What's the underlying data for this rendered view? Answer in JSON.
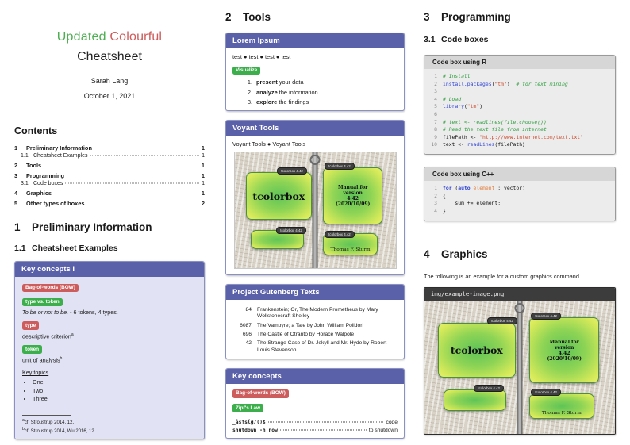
{
  "titleblock": {
    "word_updated": "Updated",
    "word_colourful": "Colourful",
    "line2": "Cheatsheet",
    "author": "Sarah Lang",
    "date": "October 1, 2021"
  },
  "contents": {
    "heading": "Contents",
    "rows": [
      {
        "num": "1",
        "label": "Preliminary Information",
        "page": "1"
      },
      {
        "num": "1.1",
        "label": "Cheatsheet Examples",
        "page": "1"
      },
      {
        "num": "2",
        "label": "Tools",
        "page": "1"
      },
      {
        "num": "3",
        "label": "Programming",
        "page": "1"
      },
      {
        "num": "3.1",
        "label": "Code boxes",
        "page": "1"
      },
      {
        "num": "4",
        "label": "Graphics",
        "page": "1"
      },
      {
        "num": "5",
        "label": "Other types of boxes",
        "page": "2"
      }
    ]
  },
  "sections": {
    "s1": {
      "num": "1",
      "title": "Preliminary Information"
    },
    "s11": {
      "num": "1.1",
      "title": "Cheatsheet Examples"
    },
    "s2": {
      "num": "2",
      "title": "Tools"
    },
    "s3": {
      "num": "3",
      "title": "Programming"
    },
    "s31": {
      "num": "3.1",
      "title": "Code boxes"
    },
    "s4": {
      "num": "4",
      "title": "Graphics"
    }
  },
  "key_concepts_1": {
    "header": "Key concepts I",
    "badge_bow": "Bag-of-words (BOW)",
    "badge_type_token": "type vs. token",
    "quote_italic": "To be or not to be.",
    "quote_rest": " - 6 tokens, 4 types.",
    "badge_type": "type",
    "type_text": "descriptive criterion",
    "type_sup": "a",
    "badge_token": "token",
    "token_text": "unit of analysis",
    "token_sup": "b",
    "key_topics_label": "Key topics",
    "topics": [
      "One",
      "Two",
      "Three"
    ],
    "footnote_a_mark": "a",
    "footnote_a_text": "cf. Stroustrup 2014, 12.",
    "footnote_b_mark": "b",
    "footnote_b_text": "cf. Stroustrup 2014, Wu 2016, 12."
  },
  "lorem": {
    "header": "Lorem Ipsum",
    "test_line": "test ● test ● test ● test",
    "badge_visualize": "Visualize",
    "steps": [
      {
        "n": "1.",
        "bold": "present",
        "rest": " your data"
      },
      {
        "n": "2.",
        "bold": "analyze",
        "rest": " the information"
      },
      {
        "n": "3.",
        "bold": "explore",
        "rest": " the findings"
      }
    ]
  },
  "voyant": {
    "header": "Voyant Tools",
    "line": "Voyant Tools ● Voyant Tools"
  },
  "gutenberg": {
    "header": "Project Gutenberg Texts",
    "rows": [
      {
        "id": "84",
        "title": "Frankenstein; Or, The Modern Prometheus by Mary Wollstonecraft Shelley"
      },
      {
        "id": "6087",
        "title": "The Vampyre; a Tale by John William Polidori"
      },
      {
        "id": "696",
        "title": "The Castle of Otranto by Horace Walpole"
      },
      {
        "id": "42",
        "title": "The Strange Case of Dr. Jekyll and Mr. Hyde by Robert Louis Stevenson"
      }
    ]
  },
  "key_concepts_2": {
    "header": "Key concepts",
    "badge_bow": "Bag-of-words (BOW)",
    "badge_zipf": "Zipf's Law",
    "leader_lines": [
      {
        "left": "_åŝ†ŝĺĝ/()$",
        "right": "code"
      },
      {
        "left": "shutdown -h now",
        "right": "to shutdown"
      }
    ]
  },
  "code_r": {
    "title": "Code box using R",
    "lines": [
      [
        {
          "c": "cm",
          "t": "# Install"
        }
      ],
      [
        {
          "c": "fn",
          "t": "install.packages"
        },
        {
          "c": "pl",
          "t": "("
        },
        {
          "c": "st",
          "t": "\"tm\""
        },
        {
          "c": "pl",
          "t": ")  "
        },
        {
          "c": "cm",
          "t": "# for text mining"
        }
      ],
      [],
      [
        {
          "c": "cm",
          "t": "# Load"
        }
      ],
      [
        {
          "c": "fn",
          "t": "library"
        },
        {
          "c": "pl",
          "t": "("
        },
        {
          "c": "st",
          "t": "\"tm\""
        },
        {
          "c": "pl",
          "t": ")"
        }
      ],
      [],
      [
        {
          "c": "cm",
          "t": "# text <- readlines(file.choose())"
        }
      ],
      [
        {
          "c": "cm",
          "t": "# Read the text file from internet"
        }
      ],
      [
        {
          "c": "pl",
          "t": "filePath <- "
        },
        {
          "c": "st",
          "t": "\"http://www.internet.com/text.txt\""
        }
      ],
      [
        {
          "c": "pl",
          "t": "text <- "
        },
        {
          "c": "fn",
          "t": "readLines"
        },
        {
          "c": "pl",
          "t": "(filePath)"
        }
      ]
    ]
  },
  "code_cpp": {
    "title": "Code box using C++",
    "lines": [
      [
        {
          "c": "kw",
          "t": "for"
        },
        {
          "c": "pl",
          "t": " ("
        },
        {
          "c": "kw",
          "t": "auto"
        },
        {
          "c": "pl",
          "t": " "
        },
        {
          "c": "vr",
          "t": "element"
        },
        {
          "c": "pl",
          "t": " : vector)"
        }
      ],
      [
        {
          "c": "pl",
          "t": "{"
        }
      ],
      [
        {
          "c": "pl",
          "t": "    sum += element;"
        }
      ],
      [
        {
          "c": "pl",
          "t": "}"
        }
      ]
    ]
  },
  "graphics": {
    "intro": "The following is an example for a custom graphics command",
    "img_label": "img/example-image.png"
  },
  "tcimg": {
    "badge": "tcolorbox 4.42",
    "box1": "tcolorbox",
    "box2": "Manual for\nversion\n4.42\n(2020/10/09)",
    "box4": "Thomas F. Sturm"
  }
}
